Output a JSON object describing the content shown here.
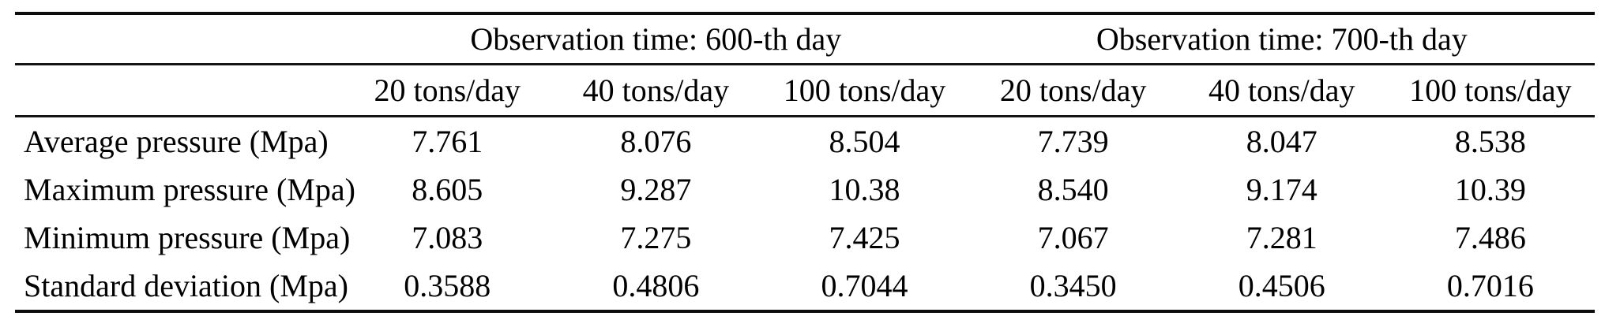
{
  "table": {
    "group_headers": [
      {
        "label": "Observation time: 600-th day"
      },
      {
        "label": "Observation time: 700-th day"
      }
    ],
    "column_headers": [
      "20 tons/day",
      "40 tons/day",
      "100 tons/day",
      "20 tons/day",
      "40 tons/day",
      "100 tons/day"
    ],
    "rows": [
      {
        "label": "Average pressure (Mpa)",
        "values": [
          "7.761",
          "8.076",
          "8.504",
          "7.739",
          "8.047",
          "8.538"
        ]
      },
      {
        "label": "Maximum pressure (Mpa)",
        "values": [
          "8.605",
          "9.287",
          "10.38",
          "8.540",
          "9.174",
          "10.39"
        ]
      },
      {
        "label": "Minimum pressure (Mpa)",
        "values": [
          "7.083",
          "7.275",
          "7.425",
          "7.067",
          "7.281",
          "7.486"
        ]
      },
      {
        "label": "Standard deviation (Mpa)",
        "values": [
          "0.3588",
          "0.4806",
          "0.7044",
          "0.3450",
          "0.4506",
          "0.7016"
        ]
      }
    ]
  },
  "colors": {
    "text": "#000000",
    "rule": "#0d0d0d",
    "background": "#ffffff"
  }
}
